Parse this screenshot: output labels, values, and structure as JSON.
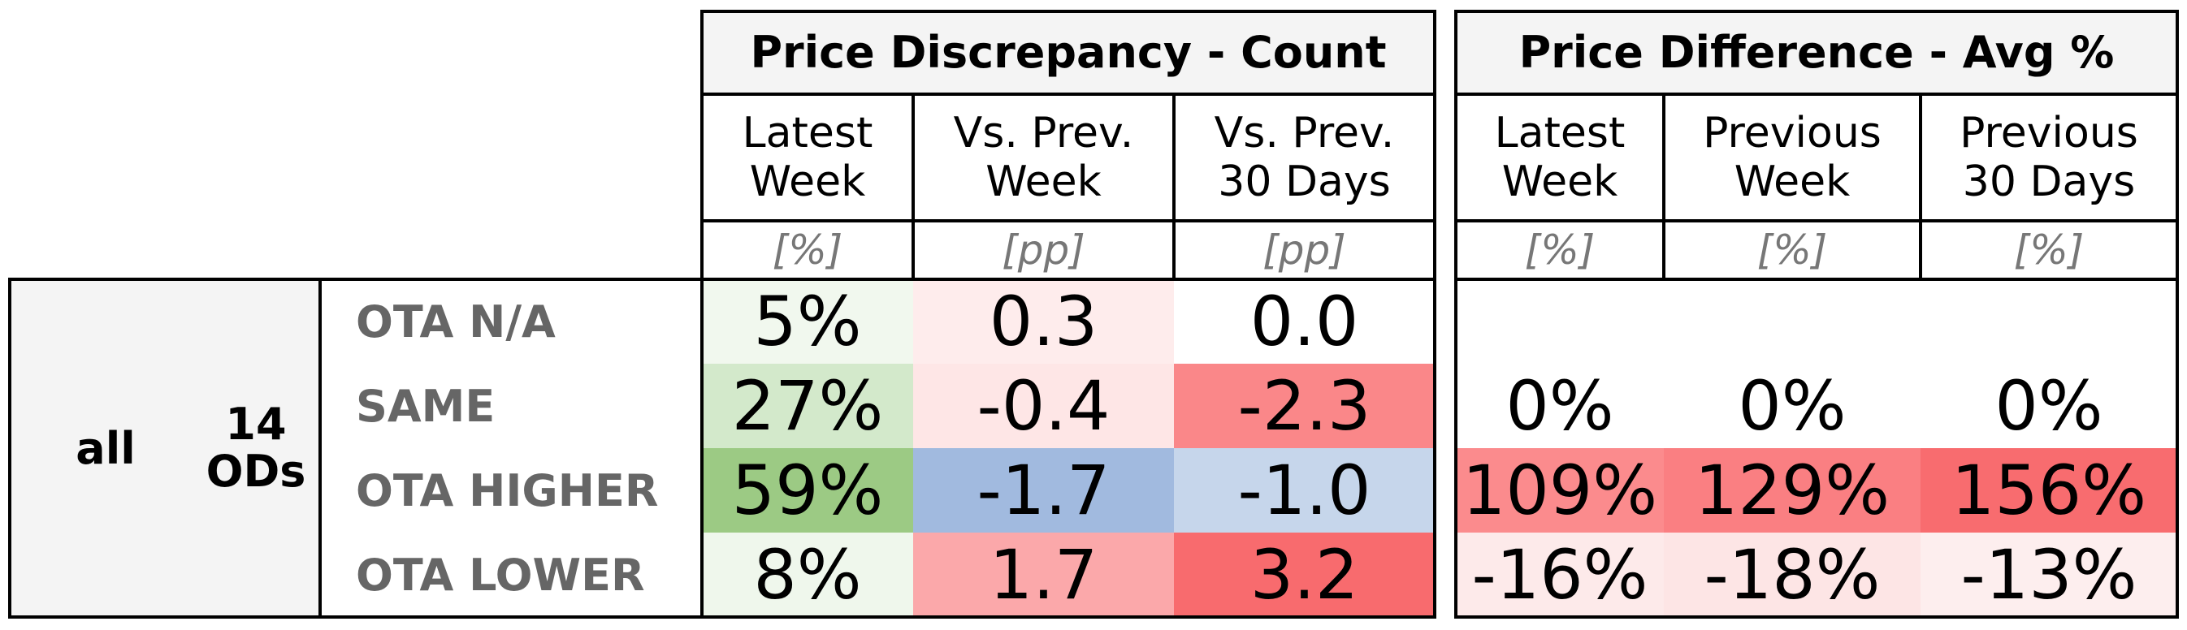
{
  "chart_data": {
    "type": "table",
    "groups": [
      {
        "title": "Price Discrepancy - Count",
        "columns": [
          {
            "label": "Latest\nWeek",
            "unit": "[%]"
          },
          {
            "label": "Vs. Prev.\nWeek",
            "unit": "[pp]"
          },
          {
            "label": "Vs. Prev.\n30 Days",
            "unit": "[pp]"
          }
        ]
      },
      {
        "title": "Price Difference - Avg %",
        "columns": [
          {
            "label": "Latest\nWeek",
            "unit": "[%]"
          },
          {
            "label": "Previous\nWeek",
            "unit": "[%]"
          },
          {
            "label": "Previous\n30 Days",
            "unit": "[%]"
          }
        ]
      }
    ],
    "segment": {
      "label": "all",
      "count_label": "14\nODs"
    },
    "rows": [
      {
        "label": "OTA N/A",
        "count": [
          "5%",
          "0.3",
          "0.0"
        ],
        "count_values": [
          5,
          0.3,
          0.0
        ],
        "diff": [
          "",
          "",
          ""
        ],
        "diff_values": [
          null,
          null,
          null
        ],
        "count_colors": [
          "#f1f8ee",
          "#feecec",
          "#ffffff"
        ],
        "diff_colors": [
          "#ffffff",
          "#ffffff",
          "#ffffff"
        ]
      },
      {
        "label": "SAME",
        "count": [
          "27%",
          "-0.4",
          "-2.3"
        ],
        "count_values": [
          27,
          -0.4,
          -2.3
        ],
        "diff": [
          "0%",
          "0%",
          "0%"
        ],
        "diff_values": [
          0,
          0,
          0
        ],
        "count_colors": [
          "#d3e9cb",
          "#fee6e6",
          "#fa8789"
        ],
        "diff_colors": [
          "#ffffff",
          "#ffffff",
          "#ffffff"
        ]
      },
      {
        "label": "OTA HIGHER",
        "count": [
          "59%",
          "-1.7",
          "-1.0"
        ],
        "count_values": [
          59,
          -1.7,
          -1.0
        ],
        "diff": [
          "109%",
          "129%",
          "156%"
        ],
        "diff_values": [
          109,
          129,
          156
        ],
        "count_colors": [
          "#9cca84",
          "#a1badf",
          "#c6d6eb"
        ],
        "diff_colors": [
          "#fb8b8d",
          "#fa7f82",
          "#f86c6f"
        ]
      },
      {
        "label": "OTA LOWER",
        "count": [
          "8%",
          "1.7",
          "3.2"
        ],
        "count_values": [
          8,
          1.7,
          3.2
        ],
        "diff": [
          "-16%",
          "-18%",
          "-13%"
        ],
        "diff_values": [
          -16,
          -18,
          -13
        ],
        "count_colors": [
          "#eff7ec",
          "#fba8aa",
          "#f86b6e"
        ],
        "diff_colors": [
          "#fdeaea",
          "#fde5e5",
          "#fdeeee"
        ]
      }
    ]
  }
}
